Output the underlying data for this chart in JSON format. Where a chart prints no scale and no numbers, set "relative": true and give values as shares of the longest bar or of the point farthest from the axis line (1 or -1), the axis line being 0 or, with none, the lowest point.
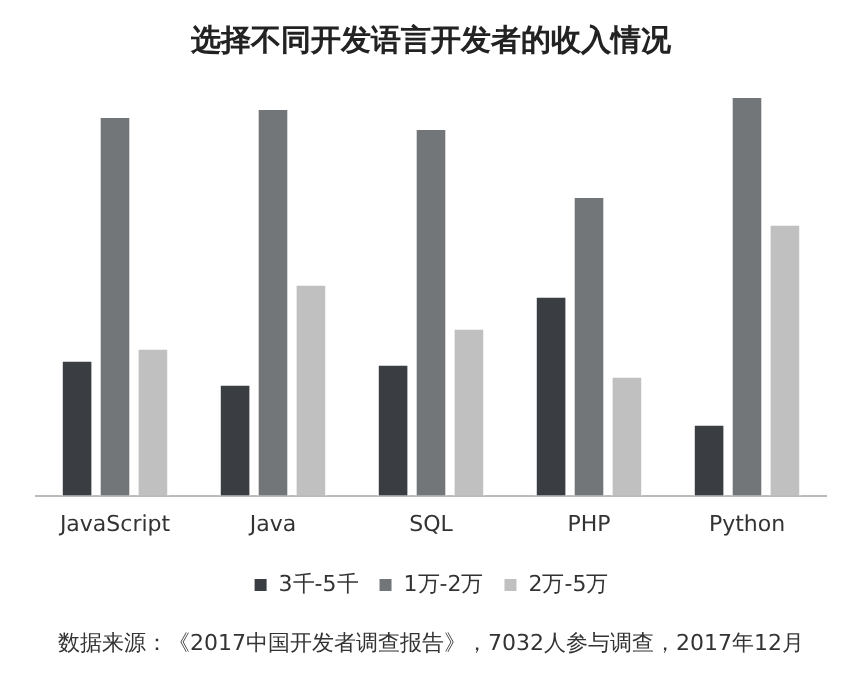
{
  "chart_data": {
    "type": "bar",
    "title": "选择不同开发语言开发者的收入情况",
    "categories": [
      "JavaScript",
      "Java",
      "SQL",
      "PHP",
      "Python"
    ],
    "relative": true,
    "legend": "bottom",
    "grid": false,
    "series": [
      {
        "name": "3千-5千",
        "color": "#3a3e42",
        "values": [
          0.34,
          0.28,
          0.33,
          0.5,
          0.18
        ]
      },
      {
        "name": "1万-2万",
        "color": "#737679",
        "values": [
          0.95,
          0.97,
          0.92,
          0.75,
          1
        ]
      },
      {
        "name": "2万-5万",
        "color": "#c0c0c0",
        "values": [
          0.37,
          0.53,
          0.42,
          0.3,
          0.68
        ]
      }
    ],
    "annotations": [
      "数据来源：《2017中国开发者调查报告》，7032人参与调查，2017年12月"
    ]
  }
}
